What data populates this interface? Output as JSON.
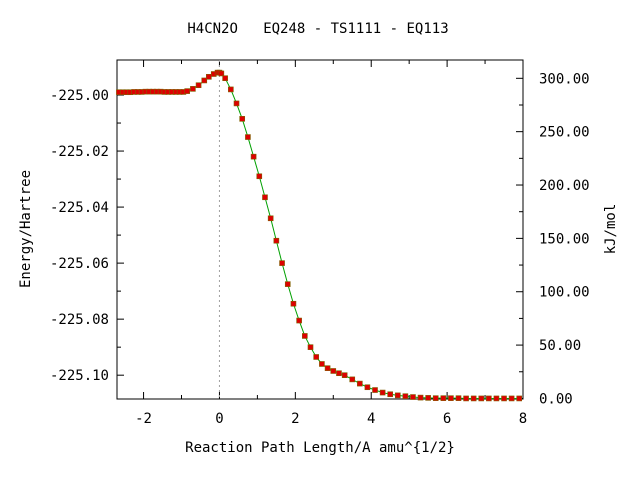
{
  "chart_data": {
    "type": "line",
    "title": "H4CN2O   EQ248 - TS1111 - EQ113",
    "xlabel": "Reaction Path Length/A amu^{1/2}",
    "ylabel": "Energy/Hartree",
    "y2label": "kJ/mol",
    "xlim": [
      -2.7,
      8.0
    ],
    "ylim": [
      -225.1085,
      -224.9875
    ],
    "x_ticks": [
      "-2",
      "0",
      "2",
      "4",
      "6",
      "8"
    ],
    "y_ticks": [
      "-225.00",
      "-225.02",
      "-225.04",
      "-225.06",
      "-225.08",
      "-225.10"
    ],
    "y2_ticks": [
      "300.00",
      "250.00",
      "200.00",
      "150.00",
      "100.00",
      "50.00",
      "0.00"
    ],
    "ts_line_x": 0.0,
    "line_color": "#00a000",
    "marker_color": "#dd0000",
    "marker_edge_color": "#806000",
    "grid": false,
    "series": [
      {
        "x": [
          -2.65,
          -2.55,
          -2.45,
          -2.35,
          -2.25,
          -2.15,
          -2.05,
          -1.95,
          -1.85,
          -1.75,
          -1.65,
          -1.55,
          -1.45,
          -1.35,
          -1.25,
          -1.15,
          -1.05,
          -0.95,
          -0.85,
          -0.7,
          -0.55,
          -0.4,
          -0.28,
          -0.15,
          -0.05,
          0.0,
          0.05,
          0.15,
          0.3,
          0.45,
          0.6,
          0.75,
          0.9,
          1.05,
          1.2,
          1.35,
          1.5,
          1.65,
          1.8,
          1.95,
          2.1,
          2.25,
          2.4,
          2.55,
          2.7,
          2.85,
          3.0,
          3.15,
          3.3,
          3.5,
          3.7,
          3.9,
          4.1,
          4.3,
          4.5,
          4.7,
          4.9,
          5.1,
          5.3,
          5.5,
          5.7,
          5.9,
          6.1,
          6.3,
          6.5,
          6.7,
          6.9,
          7.1,
          7.3,
          7.5,
          7.7,
          7.9
        ],
        "y": [
          -224.999,
          -224.999,
          -224.999,
          -224.999,
          -224.9989,
          -224.9989,
          -224.9989,
          -224.9988,
          -224.9988,
          -224.9988,
          -224.9988,
          -224.9988,
          -224.9989,
          -224.9989,
          -224.9989,
          -224.9989,
          -224.9989,
          -224.9989,
          -224.9986,
          -224.9978,
          -224.9965,
          -224.9948,
          -224.9935,
          -224.9925,
          -224.992,
          -224.992,
          -224.9923,
          -224.994,
          -224.998,
          -225.003,
          -225.0085,
          -225.015,
          -225.022,
          -225.029,
          -225.0365,
          -225.044,
          -225.052,
          -225.06,
          -225.0675,
          -225.0745,
          -225.0805,
          -225.086,
          -225.09,
          -225.0935,
          -225.096,
          -225.0975,
          -225.0985,
          -225.0993,
          -225.1,
          -225.1015,
          -225.103,
          -225.1043,
          -225.1053,
          -225.1062,
          -225.1068,
          -225.1072,
          -225.1075,
          -225.1078,
          -225.108,
          -225.1081,
          -225.1082,
          -225.1082,
          -225.1082,
          -225.1082,
          -225.1083,
          -225.1083,
          -225.1083,
          -225.1083,
          -225.1083,
          -225.1083,
          -225.1083,
          -225.1083
        ]
      }
    ]
  }
}
